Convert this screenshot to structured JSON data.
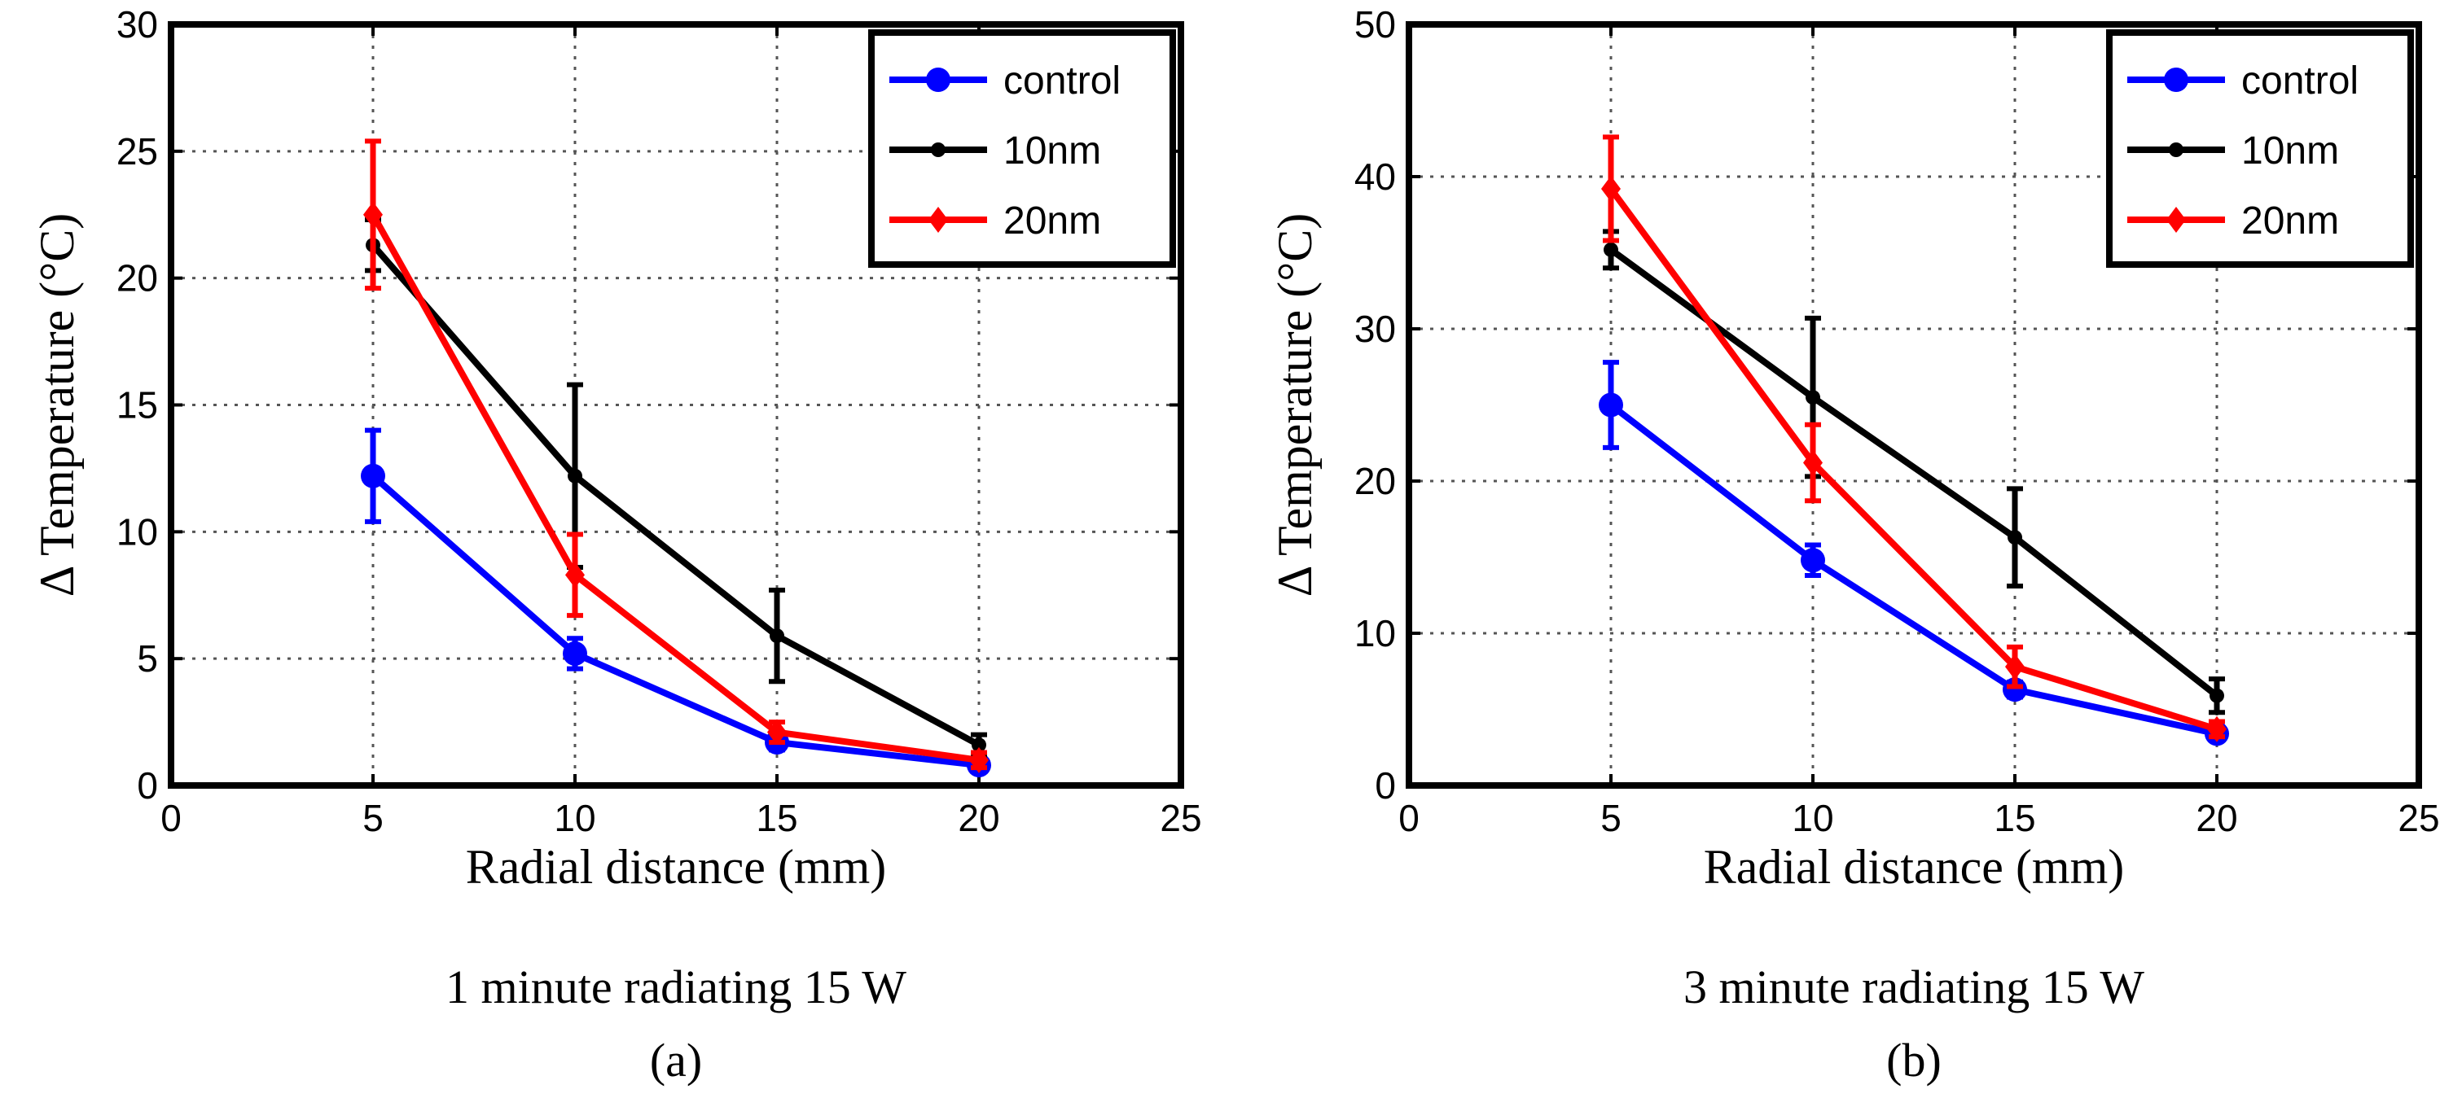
{
  "chart_data": [
    {
      "type": "line",
      "xlabel": "Radial distance (mm)",
      "ylabel": "Δ Temperature (°C)",
      "caption": "1 minute radiating 15 W",
      "panel_label": "(a)",
      "xlim": [
        0,
        25
      ],
      "ylim": [
        0,
        30
      ],
      "xticks": [
        0,
        5,
        10,
        15,
        20,
        25
      ],
      "yticks": [
        0,
        5,
        10,
        15,
        20,
        25,
        30
      ],
      "grid": true,
      "legend_position": "top-right",
      "x": [
        5,
        10,
        15,
        20
      ],
      "series": [
        {
          "name": "control",
          "color": "#0000ff",
          "marker": "circle",
          "values": [
            12.2,
            5.2,
            1.7,
            0.8
          ],
          "errors": [
            1.8,
            0.6,
            0.3,
            0.2
          ]
        },
        {
          "name": "10nm",
          "color": "#000000",
          "marker": "dot",
          "values": [
            21.3,
            12.2,
            5.9,
            1.6
          ],
          "errors": [
            1.0,
            3.6,
            1.8,
            0.4
          ]
        },
        {
          "name": "20nm",
          "color": "#ff0000",
          "marker": "diamond",
          "values": [
            22.5,
            8.3,
            2.1,
            1.0
          ],
          "errors": [
            2.9,
            1.6,
            0.4,
            0.3
          ]
        }
      ]
    },
    {
      "type": "line",
      "xlabel": "Radial distance (mm)",
      "ylabel": "Δ Temperature (°C)",
      "caption": "3 minute radiating 15 W",
      "panel_label": "(b)",
      "xlim": [
        0,
        25
      ],
      "ylim": [
        0,
        50
      ],
      "xticks": [
        0,
        5,
        10,
        15,
        20,
        25
      ],
      "yticks": [
        0,
        10,
        20,
        30,
        40,
        50
      ],
      "grid": true,
      "legend_position": "top-right",
      "x": [
        5,
        10,
        15,
        20
      ],
      "series": [
        {
          "name": "control",
          "color": "#0000ff",
          "marker": "circle",
          "values": [
            25.0,
            14.8,
            6.3,
            3.4
          ],
          "errors": [
            2.8,
            1.0,
            0.5,
            0.4
          ]
        },
        {
          "name": "10nm",
          "color": "#000000",
          "marker": "dot",
          "values": [
            35.2,
            25.5,
            16.3,
            5.9
          ],
          "errors": [
            1.2,
            5.2,
            3.2,
            1.1
          ]
        },
        {
          "name": "20nm",
          "color": "#ff0000",
          "marker": "diamond",
          "values": [
            39.2,
            21.2,
            7.8,
            3.7
          ],
          "errors": [
            3.4,
            2.5,
            1.3,
            0.5
          ]
        }
      ]
    }
  ]
}
